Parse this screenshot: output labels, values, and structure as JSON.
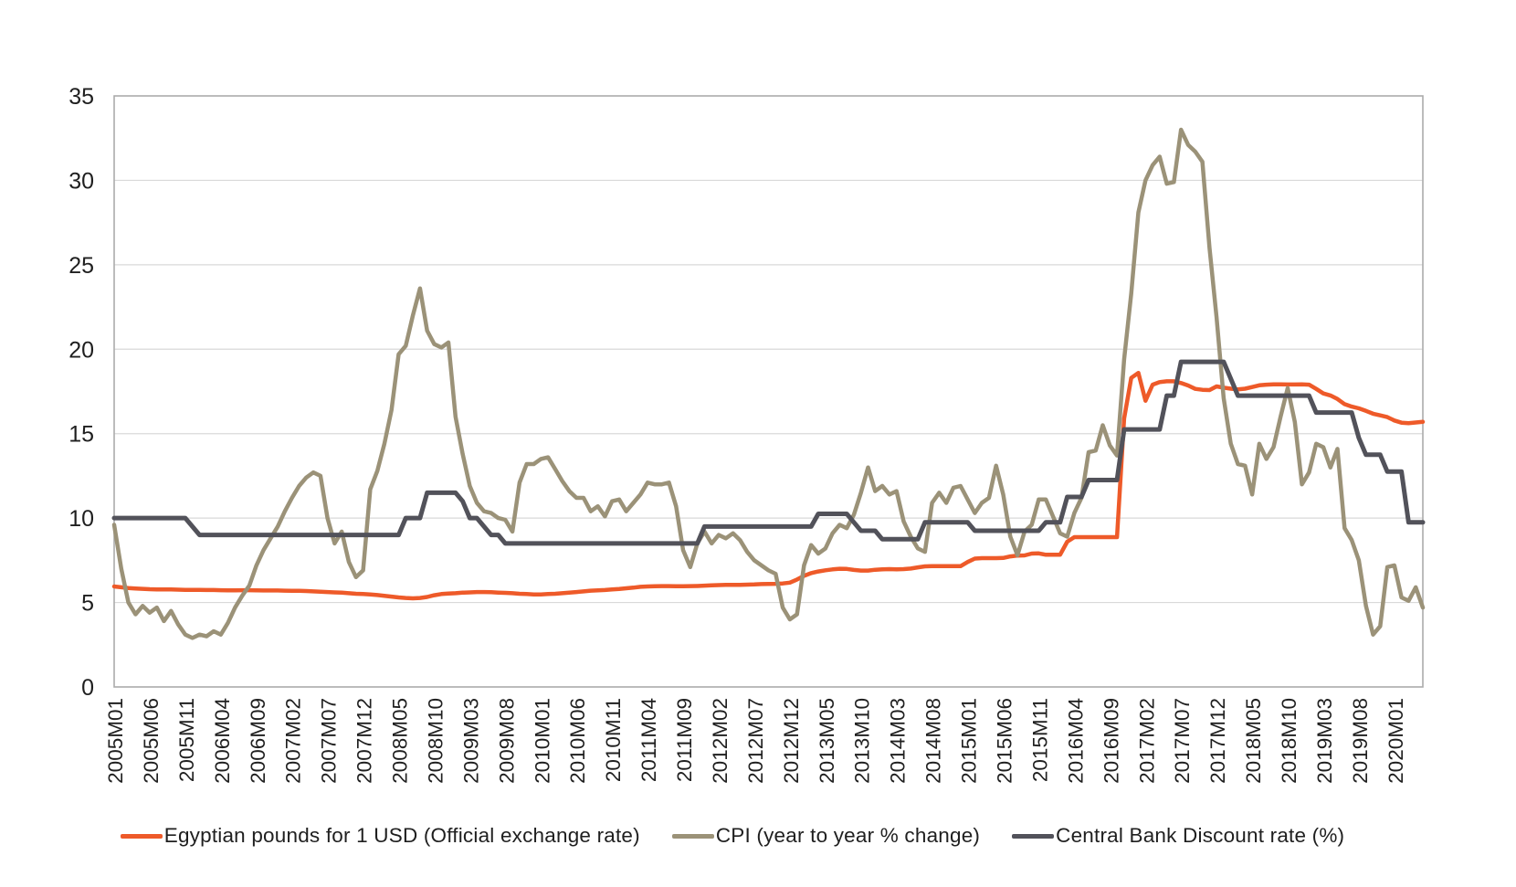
{
  "chart_data": {
    "type": "line",
    "title": "",
    "grid": true,
    "legend_position": "bottom",
    "y_axis": {
      "min": 0,
      "max": 35,
      "step": 5,
      "tick_labels": [
        "0",
        "5",
        "10",
        "15",
        "20",
        "25",
        "30",
        "35"
      ]
    },
    "x_axis": {
      "start": "2005M01",
      "end": "2020M05",
      "frequency": "monthly",
      "count": 185,
      "tick_every_n_months": 5,
      "tick_labels": [
        "2005M01",
        "2005M06",
        "2005M11",
        "2006M04",
        "2006M09",
        "2007M02",
        "2007M07",
        "2007M12",
        "2008M05",
        "2008M10",
        "2009M03",
        "2009M08",
        "2010M01",
        "2010M06",
        "2010M11",
        "2011M04",
        "2011M09",
        "2012M02",
        "2012M07",
        "2012M12",
        "2013M05",
        "2013M10",
        "2014M03",
        "2014M08",
        "2015M01",
        "2015M06",
        "2015M11",
        "2016M04",
        "2016M09",
        "2017M02",
        "2017M07",
        "2017M12",
        "2018M05",
        "2018M10",
        "2019M03",
        "2019M08",
        "2020M01"
      ]
    },
    "series": [
      {
        "key": "exchange-rate-line",
        "name": "Egyptian pounds for 1 USD (Official exchange rate)",
        "color": "#EE5A29",
        "width": 4.5,
        "values": [
          5.95,
          5.9,
          5.86,
          5.83,
          5.81,
          5.79,
          5.78,
          5.78,
          5.77,
          5.76,
          5.75,
          5.75,
          5.75,
          5.74,
          5.74,
          5.73,
          5.72,
          5.72,
          5.73,
          5.73,
          5.72,
          5.71,
          5.71,
          5.71,
          5.7,
          5.69,
          5.69,
          5.68,
          5.66,
          5.64,
          5.62,
          5.6,
          5.58,
          5.55,
          5.52,
          5.5,
          5.48,
          5.44,
          5.4,
          5.35,
          5.3,
          5.27,
          5.25,
          5.27,
          5.33,
          5.43,
          5.5,
          5.53,
          5.55,
          5.58,
          5.6,
          5.62,
          5.62,
          5.61,
          5.59,
          5.57,
          5.55,
          5.52,
          5.5,
          5.48,
          5.48,
          5.5,
          5.52,
          5.55,
          5.58,
          5.62,
          5.66,
          5.7,
          5.72,
          5.74,
          5.77,
          5.8,
          5.84,
          5.88,
          5.93,
          5.95,
          5.96,
          5.97,
          5.97,
          5.96,
          5.96,
          5.97,
          5.98,
          6.0,
          6.02,
          6.03,
          6.04,
          6.05,
          6.05,
          6.06,
          6.07,
          6.09,
          6.1,
          6.11,
          6.13,
          6.18,
          6.36,
          6.58,
          6.74,
          6.84,
          6.91,
          6.96,
          7.0,
          6.99,
          6.93,
          6.89,
          6.89,
          6.94,
          6.96,
          6.98,
          6.96,
          6.98,
          7.01,
          7.08,
          7.14,
          7.15,
          7.15,
          7.15,
          7.15,
          7.15,
          7.4,
          7.6,
          7.63,
          7.63,
          7.63,
          7.64,
          7.73,
          7.78,
          7.79,
          7.9,
          7.91,
          7.83,
          7.83,
          7.83,
          8.6,
          8.87,
          8.87,
          8.87,
          8.87,
          8.87,
          8.87,
          8.87,
          15.9,
          18.3,
          18.6,
          16.95,
          17.9,
          18.05,
          18.1,
          18.1,
          18.0,
          17.85,
          17.65,
          17.6,
          17.58,
          17.8,
          17.72,
          17.66,
          17.62,
          17.66,
          17.76,
          17.86,
          17.9,
          17.92,
          17.92,
          17.91,
          17.91,
          17.92,
          17.9,
          17.65,
          17.38,
          17.26,
          17.05,
          16.75,
          16.6,
          16.5,
          16.35,
          16.18,
          16.08,
          15.98,
          15.78,
          15.65,
          15.62,
          15.66,
          15.7
        ]
      },
      {
        "key": "cpi-line",
        "name": "CPI (year to year % change)",
        "color": "#9B9278",
        "width": 4.5,
        "values": [
          9.6,
          7.0,
          5.0,
          4.3,
          4.8,
          4.4,
          4.7,
          3.9,
          4.5,
          3.7,
          3.1,
          2.9,
          3.1,
          3.0,
          3.3,
          3.1,
          3.8,
          4.7,
          5.4,
          6.0,
          7.2,
          8.1,
          8.8,
          9.5,
          10.4,
          11.2,
          11.9,
          12.4,
          12.7,
          12.5,
          10.0,
          8.5,
          9.2,
          7.4,
          6.5,
          6.9,
          11.7,
          12.8,
          14.4,
          16.4,
          19.7,
          20.2,
          22.0,
          23.6,
          21.1,
          20.3,
          20.1,
          20.4,
          16.0,
          13.8,
          11.9,
          10.9,
          10.4,
          10.3,
          10.0,
          9.9,
          9.2,
          12.1,
          13.2,
          13.2,
          13.5,
          13.6,
          12.9,
          12.2,
          11.6,
          11.2,
          11.2,
          10.4,
          10.7,
          10.1,
          11.0,
          11.1,
          10.4,
          10.9,
          11.4,
          12.1,
          12.0,
          12.0,
          12.1,
          10.7,
          8.1,
          7.1,
          8.5,
          9.2,
          8.5,
          9.0,
          8.8,
          9.1,
          8.7,
          8.0,
          7.5,
          7.2,
          6.9,
          6.7,
          4.7,
          4.0,
          4.3,
          7.2,
          8.4,
          7.9,
          8.2,
          9.1,
          9.6,
          9.4,
          10.2,
          11.5,
          13.0,
          11.6,
          11.9,
          11.4,
          11.6,
          9.8,
          8.9,
          8.2,
          8.0,
          10.9,
          11.5,
          10.9,
          11.8,
          11.9,
          11.1,
          10.3,
          10.9,
          11.2,
          13.1,
          11.4,
          8.9,
          7.8,
          9.2,
          9.6,
          11.1,
          11.1,
          10.1,
          9.1,
          8.9,
          10.3,
          11.2,
          13.9,
          14.0,
          15.5,
          14.3,
          13.7,
          19.4,
          23.3,
          28.1,
          30.0,
          30.9,
          31.4,
          29.8,
          29.9,
          33.0,
          32.1,
          31.7,
          31.1,
          26.0,
          21.9,
          17.1,
          14.4,
          13.2,
          13.1,
          11.4,
          14.4,
          13.5,
          14.2,
          16.0,
          17.7,
          15.7,
          12.0,
          12.7,
          14.4,
          14.2,
          13.0,
          14.1,
          9.4,
          8.7,
          7.5,
          4.8,
          3.1,
          3.6,
          7.1,
          7.2,
          5.3,
          5.1,
          5.9,
          4.7
        ]
      },
      {
        "key": "discount-rate-line",
        "name": "Central Bank Discount rate (%)",
        "color": "#52525A",
        "width": 5,
        "values": [
          10.0,
          10.0,
          10.0,
          10.0,
          10.0,
          10.0,
          10.0,
          10.0,
          10.0,
          10.0,
          10.0,
          9.5,
          9.0,
          9.0,
          9.0,
          9.0,
          9.0,
          9.0,
          9.0,
          9.0,
          9.0,
          9.0,
          9.0,
          9.0,
          9.0,
          9.0,
          9.0,
          9.0,
          9.0,
          9.0,
          9.0,
          9.0,
          9.0,
          9.0,
          9.0,
          9.0,
          9.0,
          9.0,
          9.0,
          9.0,
          9.0,
          10.0,
          10.0,
          10.0,
          11.5,
          11.5,
          11.5,
          11.5,
          11.5,
          11.0,
          10.0,
          10.0,
          9.5,
          9.0,
          9.0,
          8.5,
          8.5,
          8.5,
          8.5,
          8.5,
          8.5,
          8.5,
          8.5,
          8.5,
          8.5,
          8.5,
          8.5,
          8.5,
          8.5,
          8.5,
          8.5,
          8.5,
          8.5,
          8.5,
          8.5,
          8.5,
          8.5,
          8.5,
          8.5,
          8.5,
          8.5,
          8.5,
          8.5,
          9.5,
          9.5,
          9.5,
          9.5,
          9.5,
          9.5,
          9.5,
          9.5,
          9.5,
          9.5,
          9.5,
          9.5,
          9.5,
          9.5,
          9.5,
          9.5,
          10.25,
          10.25,
          10.25,
          10.25,
          10.25,
          9.75,
          9.25,
          9.25,
          9.25,
          8.75,
          8.75,
          8.75,
          8.75,
          8.75,
          8.75,
          9.75,
          9.75,
          9.75,
          9.75,
          9.75,
          9.75,
          9.75,
          9.25,
          9.25,
          9.25,
          9.25,
          9.25,
          9.25,
          9.25,
          9.25,
          9.25,
          9.25,
          9.75,
          9.75,
          9.75,
          11.25,
          11.25,
          11.25,
          12.25,
          12.25,
          12.25,
          12.25,
          12.25,
          15.25,
          15.25,
          15.25,
          15.25,
          15.25,
          15.25,
          17.25,
          17.25,
          19.25,
          19.25,
          19.25,
          19.25,
          19.25,
          19.25,
          19.25,
          18.25,
          17.25,
          17.25,
          17.25,
          17.25,
          17.25,
          17.25,
          17.25,
          17.25,
          17.25,
          17.25,
          17.25,
          16.25,
          16.25,
          16.25,
          16.25,
          16.25,
          16.25,
          14.75,
          13.75,
          13.75,
          13.75,
          12.75,
          12.75,
          12.75,
          9.75,
          9.75,
          9.75
        ]
      }
    ]
  },
  "style": {
    "plot_border_color": "#ACACAC",
    "gridline_color": "#D9D9D9",
    "axis_text_color": "#1f1f1f",
    "background_color": "#FFFFFF"
  }
}
